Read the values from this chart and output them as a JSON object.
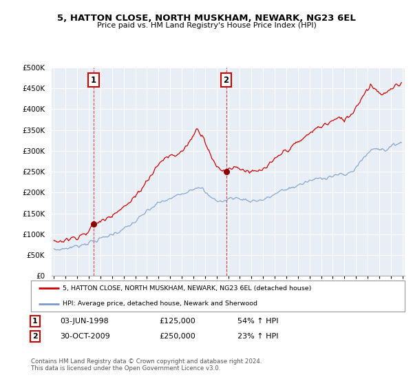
{
  "title": "5, HATTON CLOSE, NORTH MUSKHAM, NEWARK, NG23 6EL",
  "subtitle": "Price paid vs. HM Land Registry's House Price Index (HPI)",
  "ylim": [
    0,
    500000
  ],
  "yticks": [
    0,
    50000,
    100000,
    150000,
    200000,
    250000,
    300000,
    350000,
    400000,
    450000,
    500000
  ],
  "ytick_labels": [
    "£0",
    "£50K",
    "£100K",
    "£150K",
    "£200K",
    "£250K",
    "£300K",
    "£350K",
    "£400K",
    "£450K",
    "£500K"
  ],
  "background_color": "#ffffff",
  "plot_bg_color": "#e8eef5",
  "grid_color": "#ffffff",
  "line1_color": "#cc0000",
  "line2_color": "#7799cc",
  "marker_color": "#8B0000",
  "annotation1": {
    "label": "1",
    "date_str": "03-JUN-1998",
    "price": "£125,000",
    "hpi": "54% ↑ HPI"
  },
  "annotation2": {
    "label": "2",
    "date_str": "30-OCT-2009",
    "price": "£250,000",
    "hpi": "23% ↑ HPI"
  },
  "legend_line1": "5, HATTON CLOSE, NORTH MUSKHAM, NEWARK, NG23 6EL (detached house)",
  "legend_line2": "HPI: Average price, detached house, Newark and Sherwood",
  "footnote": "Contains HM Land Registry data © Crown copyright and database right 2024.\nThis data is licensed under the Open Government Licence v3.0.",
  "sale1_x": 1998.42,
  "sale1_y": 125000,
  "sale2_x": 2009.83,
  "sale2_y": 250000,
  "xlim_left": 1994.8,
  "xlim_right": 2025.2
}
